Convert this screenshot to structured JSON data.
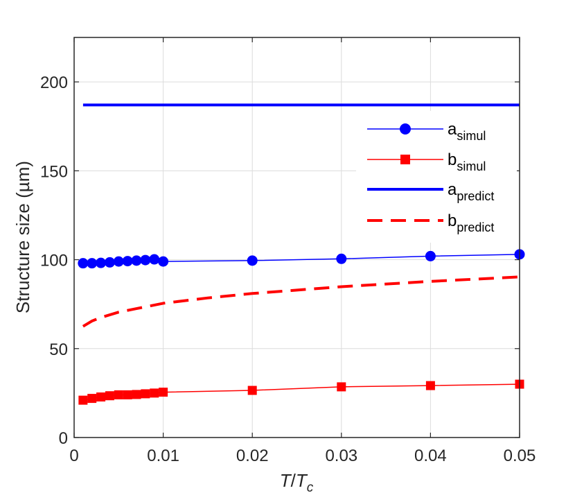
{
  "chart_data": {
    "type": "line",
    "xlabel_main": "T",
    "xlabel_sep": "/",
    "xlabel_base": "T",
    "xlabel_sub": "c",
    "ylabel": "Structure size (µm)",
    "xlim": [
      0,
      0.05
    ],
    "ylim": [
      0,
      225
    ],
    "x_ticks": [
      0,
      0.01,
      0.02,
      0.03,
      0.04,
      0.05
    ],
    "x_tick_labels": [
      "0",
      "0.01",
      "0.02",
      "0.03",
      "0.04",
      "0.05"
    ],
    "y_ticks": [
      0,
      50,
      100,
      150,
      200
    ],
    "y_tick_labels": [
      "0",
      "50",
      "100",
      "150",
      "200"
    ],
    "grid": true,
    "legend_position": "top-right",
    "series": [
      {
        "key": "a_simul",
        "name_main": "a",
        "name_sub": "simul",
        "color": "#0000ff",
        "line": "solid-thin",
        "marker": "circle",
        "x": [
          0.001,
          0.002,
          0.003,
          0.004,
          0.005,
          0.006,
          0.007,
          0.008,
          0.009,
          0.01,
          0.02,
          0.03,
          0.04,
          0.05
        ],
        "y": [
          98,
          98,
          98.2,
          98.5,
          99,
          99.2,
          99.5,
          99.8,
          100.2,
          99,
          99.5,
          100.5,
          102,
          103
        ]
      },
      {
        "key": "b_simul",
        "name_main": "b",
        "name_sub": "simul",
        "color": "#ff0000",
        "line": "solid-thin",
        "marker": "square",
        "x": [
          0.001,
          0.002,
          0.003,
          0.004,
          0.005,
          0.006,
          0.007,
          0.008,
          0.009,
          0.01,
          0.02,
          0.03,
          0.04,
          0.05
        ],
        "y": [
          21,
          22,
          22.8,
          23.5,
          24,
          24,
          24.2,
          24.6,
          25,
          25.5,
          26.5,
          28.5,
          29.2,
          30
        ]
      },
      {
        "key": "a_predict",
        "name_main": "a",
        "name_sub": "predict",
        "color": "#0000ff",
        "line": "solid-thick",
        "marker": "none",
        "x": [
          0.001,
          0.05
        ],
        "y": [
          187,
          187
        ]
      },
      {
        "key": "b_predict",
        "name_main": "b",
        "name_sub": "predict",
        "color": "#ff0000",
        "line": "dashed-thick",
        "marker": "none",
        "x": [
          0.001,
          0.002,
          0.003,
          0.005,
          0.007,
          0.01,
          0.015,
          0.02,
          0.03,
          0.04,
          0.05
        ],
        "y": [
          62.5,
          65.5,
          67.5,
          70.5,
          72.5,
          75.5,
          78.5,
          81,
          84.8,
          87.8,
          90.3
        ]
      }
    ]
  }
}
